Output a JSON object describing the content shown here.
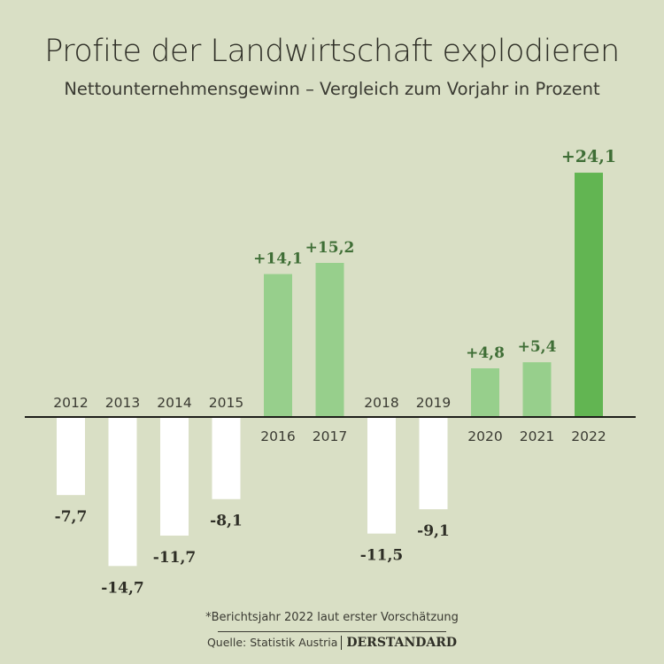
{
  "header": {
    "title": "Profite der Landwirtschaft explodieren",
    "subtitle": "Nettounternehmensgewinn – Vergleich zum Vorjahr in Prozent"
  },
  "footer": {
    "note": "*Berichtsjahr 2022 laut erster Vorschätzung",
    "source": "Quelle: Statistik Austria",
    "logo": "DERSTANDARD"
  },
  "colors": {
    "background": "#d9dfc5",
    "negative": "#ffffff",
    "positive": "#97cf8c",
    "highlight": "#62b552",
    "positive_label": "#3f6e36",
    "negative_label": "#2e2e26"
  },
  "chart_data": {
    "type": "bar",
    "title": "Profite der Landwirtschaft explodieren",
    "subtitle": "Nettounternehmensgewinn – Vergleich zum Vorjahr in Prozent",
    "categories": [
      "2012",
      "2013",
      "2014",
      "2015",
      "2016",
      "2017",
      "2018",
      "2019",
      "2020",
      "2021",
      "2022"
    ],
    "values": [
      -7.7,
      -14.7,
      -11.7,
      -8.1,
      14.1,
      15.2,
      -11.5,
      -9.1,
      4.8,
      5.4,
      24.1
    ],
    "labels": [
      "-7,7",
      "-14,7",
      "-11,7",
      "-8,1",
      "+14,1",
      "+15,2",
      "-11,5",
      "-9,1",
      "+4,8",
      "+5,4",
      "+24,1"
    ],
    "highlight": "2022",
    "ylim": [
      -14.7,
      24.1
    ],
    "grid": false
  }
}
